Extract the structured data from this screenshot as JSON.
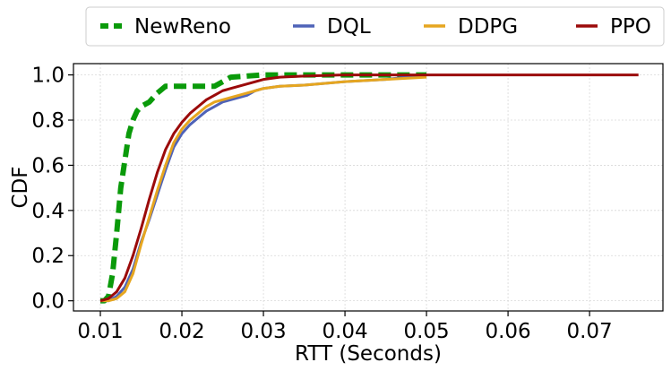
{
  "chart_data": {
    "type": "line",
    "title": "",
    "xlabel": "RTT (Seconds)",
    "ylabel": "CDF",
    "xlim": [
      0.0067,
      0.079
    ],
    "ylim": [
      -0.045,
      1.05
    ],
    "x_ticks": [
      0.01,
      0.02,
      0.03,
      0.04,
      0.05,
      0.06,
      0.07
    ],
    "x_tick_labels": [
      "0.01",
      "0.02",
      "0.03",
      "0.04",
      "0.05",
      "0.06",
      "0.07"
    ],
    "y_ticks": [
      0.0,
      0.2,
      0.4,
      0.6,
      0.8,
      1.0
    ],
    "y_tick_labels": [
      "0.0",
      "0.2",
      "0.4",
      "0.6",
      "0.8",
      "1.0"
    ],
    "grid": true,
    "legend_position": "top-center-outside",
    "series": [
      {
        "name": "NewReno",
        "color": "#0a9a0a",
        "dashed": true,
        "x": [
          0.01,
          0.0105,
          0.011,
          0.0115,
          0.012,
          0.0125,
          0.013,
          0.0135,
          0.014,
          0.0145,
          0.015,
          0.016,
          0.017,
          0.018,
          0.02,
          0.022,
          0.024,
          0.026,
          0.03,
          0.04,
          0.05
        ],
        "y": [
          0.0,
          0.0,
          0.02,
          0.12,
          0.3,
          0.5,
          0.62,
          0.74,
          0.8,
          0.84,
          0.86,
          0.88,
          0.92,
          0.95,
          0.95,
          0.95,
          0.95,
          0.99,
          1.0,
          1.0,
          1.0
        ]
      },
      {
        "name": "DQL",
        "color": "#4f63b8",
        "dashed": false,
        "x": [
          0.01,
          0.011,
          0.012,
          0.013,
          0.014,
          0.015,
          0.016,
          0.017,
          0.018,
          0.019,
          0.02,
          0.021,
          0.022,
          0.023,
          0.024,
          0.025,
          0.026,
          0.027,
          0.028,
          0.029,
          0.03,
          0.032,
          0.035,
          0.04,
          0.045,
          0.05
        ],
        "y": [
          0.0,
          0.0,
          0.02,
          0.06,
          0.14,
          0.26,
          0.36,
          0.47,
          0.58,
          0.68,
          0.74,
          0.78,
          0.81,
          0.84,
          0.86,
          0.88,
          0.89,
          0.9,
          0.91,
          0.93,
          0.94,
          0.95,
          0.955,
          0.97,
          0.98,
          1.0
        ]
      },
      {
        "name": "DDPG",
        "color": "#e6a620",
        "dashed": false,
        "x": [
          0.01,
          0.011,
          0.012,
          0.013,
          0.014,
          0.015,
          0.016,
          0.017,
          0.018,
          0.019,
          0.02,
          0.021,
          0.022,
          0.023,
          0.024,
          0.025,
          0.026,
          0.027,
          0.028,
          0.029,
          0.03,
          0.032,
          0.035,
          0.04,
          0.045,
          0.05
        ],
        "y": [
          0.0,
          0.0,
          0.01,
          0.04,
          0.12,
          0.25,
          0.37,
          0.49,
          0.6,
          0.7,
          0.76,
          0.8,
          0.83,
          0.86,
          0.88,
          0.89,
          0.9,
          0.91,
          0.92,
          0.93,
          0.94,
          0.95,
          0.955,
          0.97,
          0.98,
          0.99
        ]
      },
      {
        "name": "PPO",
        "color": "#9b0a0a",
        "dashed": false,
        "x": [
          0.01,
          0.011,
          0.012,
          0.013,
          0.014,
          0.015,
          0.016,
          0.017,
          0.018,
          0.019,
          0.02,
          0.021,
          0.022,
          0.023,
          0.024,
          0.025,
          0.026,
          0.027,
          0.028,
          0.029,
          0.03,
          0.032,
          0.035,
          0.04,
          0.05,
          0.06,
          0.07,
          0.076
        ],
        "y": [
          0.0,
          0.01,
          0.04,
          0.1,
          0.2,
          0.32,
          0.45,
          0.57,
          0.67,
          0.74,
          0.79,
          0.83,
          0.86,
          0.89,
          0.91,
          0.93,
          0.94,
          0.95,
          0.96,
          0.97,
          0.98,
          0.99,
          0.995,
          1.0,
          1.0,
          1.0,
          1.0,
          1.0
        ]
      }
    ]
  }
}
